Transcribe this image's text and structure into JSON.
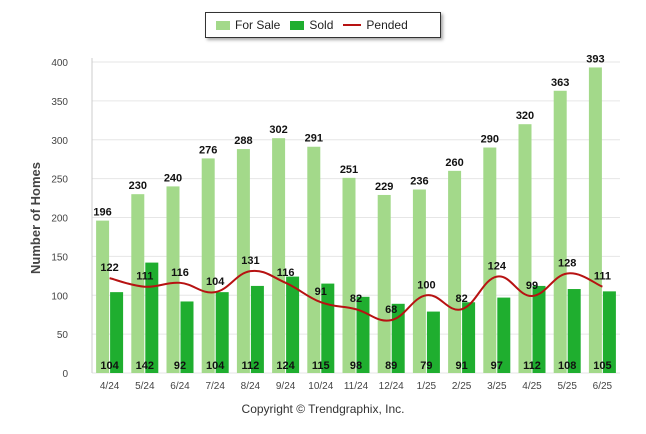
{
  "legend": {
    "for_sale_label": "For Sale",
    "sold_label": "Sold",
    "pended_label": "Pended"
  },
  "footer": {
    "copyright": "Copyright © Trendgraphix, Inc."
  },
  "colors": {
    "for_sale": "#a3d98a",
    "sold": "#1fae2f",
    "pended": "#b71212",
    "grid": "#e6e6e6"
  },
  "chart_data": {
    "type": "bar",
    "ylabel": "Number of Homes",
    "ylim": [
      0,
      400
    ],
    "yticks": [
      0,
      50,
      100,
      150,
      200,
      250,
      300,
      350,
      400
    ],
    "grid": true,
    "legend_position": "top-center",
    "categories": [
      "4/24",
      "5/24",
      "6/24",
      "7/24",
      "8/24",
      "9/24",
      "10/24",
      "11/24",
      "12/24",
      "1/25",
      "2/25",
      "3/25",
      "4/25",
      "5/25",
      "6/25"
    ],
    "series": [
      {
        "name": "For Sale",
        "kind": "bar",
        "values": [
          196,
          230,
          240,
          276,
          288,
          302,
          291,
          251,
          229,
          236,
          260,
          290,
          320,
          363,
          393
        ]
      },
      {
        "name": "Sold",
        "kind": "bar",
        "values": [
          104,
          142,
          92,
          104,
          112,
          124,
          115,
          98,
          89,
          79,
          91,
          97,
          112,
          108,
          105
        ]
      },
      {
        "name": "Pended",
        "kind": "line",
        "values": [
          122,
          111,
          116,
          104,
          131,
          116,
          91,
          82,
          68,
          100,
          82,
          124,
          99,
          128,
          111
        ]
      }
    ]
  }
}
